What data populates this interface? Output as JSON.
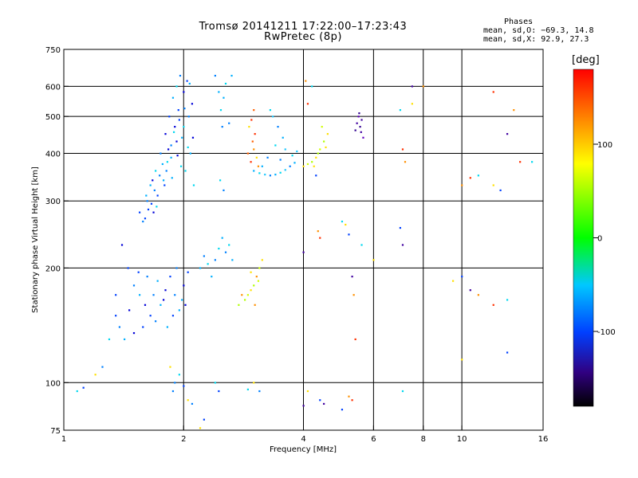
{
  "header": {
    "title": "Tromsø 20141211 17:22:00–17:23:43",
    "subtitle": "RwPretec (8p)",
    "phases_heading": "Phases",
    "phases_o": "mean, sd,O: −69.3, 14.8",
    "phases_x": "mean, sd,X:  92.9, 27.3"
  },
  "colorbar": {
    "label": "[deg]",
    "range": [
      -180,
      180
    ],
    "ticks": [
      {
        "value": 100,
        "label": "100"
      },
      {
        "value": 0,
        "label": "0"
      },
      {
        "value": -100,
        "label": "-100"
      }
    ]
  },
  "chart_data": {
    "type": "scatter",
    "title": "Tromsø 20141211 17:22:00–17:23:43",
    "subtitle": "RwPretec (8p)",
    "xlabel": "Frequency [MHz]",
    "ylabel": "Stationary phase Virtual Height [km]",
    "x_scale": "log",
    "y_scale": "log",
    "xlim": [
      1,
      16
    ],
    "ylim": [
      75,
      750
    ],
    "x_ticks": [
      {
        "value": 1,
        "label": "1"
      },
      {
        "value": 2,
        "label": "2"
      },
      {
        "value": 4,
        "label": "4"
      },
      {
        "value": 6,
        "label": "6"
      },
      {
        "value": 8,
        "label": "8"
      },
      {
        "value": 10,
        "label": "10"
      },
      {
        "value": 16,
        "label": "16"
      }
    ],
    "y_ticks": [
      {
        "value": 75,
        "label": "75"
      },
      {
        "value": 100,
        "label": "100"
      },
      {
        "value": 200,
        "label": "200"
      },
      {
        "value": 300,
        "label": "300"
      },
      {
        "value": 400,
        "label": "400"
      },
      {
        "value": 500,
        "label": "500"
      },
      {
        "value": 600,
        "label": "600"
      },
      {
        "value": 750,
        "label": "750"
      }
    ],
    "x_gridlines": [
      2,
      4,
      6,
      8,
      10
    ],
    "y_gridlines": [
      100,
      200,
      300,
      400,
      500,
      600
    ],
    "grid": true,
    "color_by": "phase [deg]",
    "series": [
      {
        "points": [
          [
            1.6,
            270
          ],
          [
            1.62,
            300
          ],
          [
            1.65,
            330
          ],
          [
            1.68,
            280
          ],
          [
            1.7,
            360
          ],
          [
            1.72,
            310
          ],
          [
            1.75,
            400
          ],
          [
            1.78,
            340
          ],
          [
            1.8,
            450
          ],
          [
            1.82,
            380
          ],
          [
            1.84,
            500
          ],
          [
            1.86,
            420
          ],
          [
            1.88,
            560
          ],
          [
            1.9,
            470
          ],
          [
            1.92,
            600
          ],
          [
            1.94,
            520
          ],
          [
            1.96,
            640
          ],
          [
            1.98,
            440
          ],
          [
            2.0,
            580
          ],
          [
            2.02,
            360
          ],
          [
            2.04,
            620
          ],
          [
            2.06,
            500
          ],
          [
            2.08,
            400
          ],
          [
            2.1,
            540
          ],
          [
            2.12,
            330
          ],
          [
            1.66,
            295
          ],
          [
            1.74,
            350
          ],
          [
            1.86,
            390
          ],
          [
            1.92,
            430
          ],
          [
            2.0,
            470
          ],
          [
            1.63,
            285
          ],
          [
            1.69,
            320
          ],
          [
            1.77,
            375
          ],
          [
            1.83,
            410
          ],
          [
            1.89,
            455
          ],
          [
            1.95,
            490
          ],
          [
            2.01,
            525
          ],
          [
            2.07,
            610
          ],
          [
            2.11,
            440
          ],
          [
            1.97,
            370
          ],
          [
            1.55,
            280
          ],
          [
            1.58,
            265
          ],
          [
            1.61,
            310
          ],
          [
            1.67,
            340
          ],
          [
            1.71,
            290
          ],
          [
            1.79,
            330
          ],
          [
            1.81,
            360
          ],
          [
            1.87,
            345
          ],
          [
            1.93,
            395
          ],
          [
            2.05,
            415
          ]
        ]
      },
      {
        "points": [
          [
            2.4,
            640
          ],
          [
            2.45,
            580
          ],
          [
            2.48,
            520
          ],
          [
            2.5,
            470
          ],
          [
            2.52,
            560
          ],
          [
            2.55,
            610
          ],
          [
            2.6,
            480
          ],
          [
            2.64,
            640
          ],
          [
            2.47,
            340
          ],
          [
            2.52,
            320
          ]
        ]
      },
      {
        "points": [
          [
            2.9,
            400
          ],
          [
            2.95,
            380
          ],
          [
            3.0,
            410
          ],
          [
            3.05,
            390
          ],
          [
            2.98,
            430
          ],
          [
            3.02,
            450
          ],
          [
            3.08,
            370
          ],
          [
            2.92,
            470
          ],
          [
            3.0,
            520
          ],
          [
            2.96,
            490
          ]
        ]
      },
      {
        "points": [
          [
            3.0,
            360
          ],
          [
            3.1,
            355
          ],
          [
            3.2,
            352
          ],
          [
            3.3,
            350
          ],
          [
            3.4,
            352
          ],
          [
            3.5,
            356
          ],
          [
            3.6,
            362
          ],
          [
            3.7,
            370
          ],
          [
            3.8,
            378
          ],
          [
            3.4,
            420
          ],
          [
            3.35,
            500
          ],
          [
            3.45,
            470
          ],
          [
            3.55,
            440
          ],
          [
            3.3,
            520
          ],
          [
            3.6,
            410
          ],
          [
            3.25,
            390
          ],
          [
            3.15,
            370
          ],
          [
            3.75,
            395
          ],
          [
            3.85,
            405
          ],
          [
            3.5,
            385
          ]
        ]
      },
      {
        "points": [
          [
            4.0,
            370
          ],
          [
            4.1,
            375
          ],
          [
            4.2,
            380
          ],
          [
            4.3,
            390
          ],
          [
            4.4,
            410
          ],
          [
            4.5,
            430
          ],
          [
            4.6,
            450
          ],
          [
            4.45,
            470
          ],
          [
            4.35,
            400
          ],
          [
            4.55,
            415
          ]
        ]
      },
      {
        "points": [
          [
            5.4,
            460
          ],
          [
            5.45,
            480
          ],
          [
            5.5,
            500
          ],
          [
            5.55,
            470
          ],
          [
            5.6,
            490
          ],
          [
            5.65,
            440
          ],
          [
            5.52,
            510
          ],
          [
            5.58,
            455
          ]
        ]
      },
      {
        "points": [
          [
            1.4,
            230
          ],
          [
            1.45,
            200
          ],
          [
            1.5,
            180
          ],
          [
            1.55,
            170
          ],
          [
            1.6,
            160
          ],
          [
            1.65,
            150
          ],
          [
            1.7,
            145
          ],
          [
            1.75,
            160
          ],
          [
            1.8,
            175
          ],
          [
            1.85,
            190
          ],
          [
            1.9,
            170
          ],
          [
            1.95,
            155
          ],
          [
            2.0,
            180
          ],
          [
            2.05,
            195
          ],
          [
            1.38,
            140
          ],
          [
            1.42,
            130
          ],
          [
            1.5,
            135
          ],
          [
            1.58,
            140
          ],
          [
            1.62,
            190
          ],
          [
            1.72,
            185
          ],
          [
            1.78,
            165
          ],
          [
            1.88,
            150
          ],
          [
            1.92,
            200
          ],
          [
            1.98,
            165
          ],
          [
            1.46,
            155
          ],
          [
            1.54,
            195
          ],
          [
            1.68,
            170
          ],
          [
            1.82,
            140
          ],
          [
            2.02,
            160
          ],
          [
            1.35,
            170
          ]
        ]
      },
      {
        "points": [
          [
            2.2,
            200
          ],
          [
            2.25,
            215
          ],
          [
            2.3,
            205
          ],
          [
            2.35,
            190
          ],
          [
            2.4,
            210
          ],
          [
            2.45,
            225
          ],
          [
            2.5,
            240
          ],
          [
            2.55,
            220
          ],
          [
            2.6,
            230
          ],
          [
            2.65,
            210
          ]
        ]
      },
      {
        "points": [
          [
            2.9,
            170
          ],
          [
            2.95,
            175
          ],
          [
            3.0,
            180
          ],
          [
            3.05,
            190
          ],
          [
            3.1,
            200
          ],
          [
            3.15,
            210
          ],
          [
            2.85,
            165
          ],
          [
            3.02,
            160
          ],
          [
            3.08,
            185
          ],
          [
            2.95,
            195
          ],
          [
            2.75,
            160
          ],
          [
            2.8,
            170
          ]
        ]
      },
      {
        "points": [
          [
            1.08,
            95
          ],
          [
            1.12,
            97
          ],
          [
            1.2,
            105
          ],
          [
            1.25,
            110
          ],
          [
            1.3,
            130
          ],
          [
            1.35,
            150
          ],
          [
            1.85,
            110
          ],
          [
            1.9,
            100
          ],
          [
            1.95,
            105
          ],
          [
            2.0,
            98
          ],
          [
            2.05,
            90
          ],
          [
            2.1,
            88
          ],
          [
            2.4,
            100
          ],
          [
            2.45,
            95
          ],
          [
            3.0,
            100
          ],
          [
            3.1,
            95
          ],
          [
            2.9,
            96
          ],
          [
            2.25,
            80
          ],
          [
            2.2,
            76
          ],
          [
            1.88,
            95
          ]
        ]
      },
      {
        "points": [
          [
            4.05,
            620
          ],
          [
            4.1,
            540
          ],
          [
            4.2,
            600
          ],
          [
            4.25,
            370
          ],
          [
            4.3,
            350
          ],
          [
            4.0,
            220
          ],
          [
            4.35,
            250
          ],
          [
            4.4,
            240
          ],
          [
            5.0,
            265
          ],
          [
            5.1,
            260
          ],
          [
            5.2,
            245
          ],
          [
            5.3,
            190
          ],
          [
            5.35,
            170
          ],
          [
            5.4,
            130
          ],
          [
            5.6,
            230
          ],
          [
            6.0,
            210
          ],
          [
            7.0,
            255
          ],
          [
            7.1,
            230
          ],
          [
            7.2,
            380
          ],
          [
            7.1,
            410
          ],
          [
            7.0,
            520
          ],
          [
            7.5,
            540
          ],
          [
            4.4,
            90
          ],
          [
            4.5,
            88
          ],
          [
            5.2,
            92
          ],
          [
            5.3,
            90
          ],
          [
            7.1,
            95
          ],
          [
            4.1,
            95
          ],
          [
            5.0,
            85
          ],
          [
            4.0,
            87
          ],
          [
            10.0,
            330
          ],
          [
            10.5,
            345
          ],
          [
            11.0,
            350
          ],
          [
            12.0,
            330
          ],
          [
            12.5,
            320
          ],
          [
            13.0,
            450
          ],
          [
            13.5,
            520
          ],
          [
            14.0,
            380
          ],
          [
            15.0,
            380
          ],
          [
            9.5,
            185
          ],
          [
            10.0,
            190
          ],
          [
            10.5,
            175
          ],
          [
            11.0,
            170
          ],
          [
            12.0,
            160
          ],
          [
            13.0,
            165
          ],
          [
            10.0,
            115
          ],
          [
            13.0,
            120
          ],
          [
            7.5,
            600
          ],
          [
            8.0,
            600
          ],
          [
            12.0,
            580
          ]
        ]
      }
    ]
  }
}
